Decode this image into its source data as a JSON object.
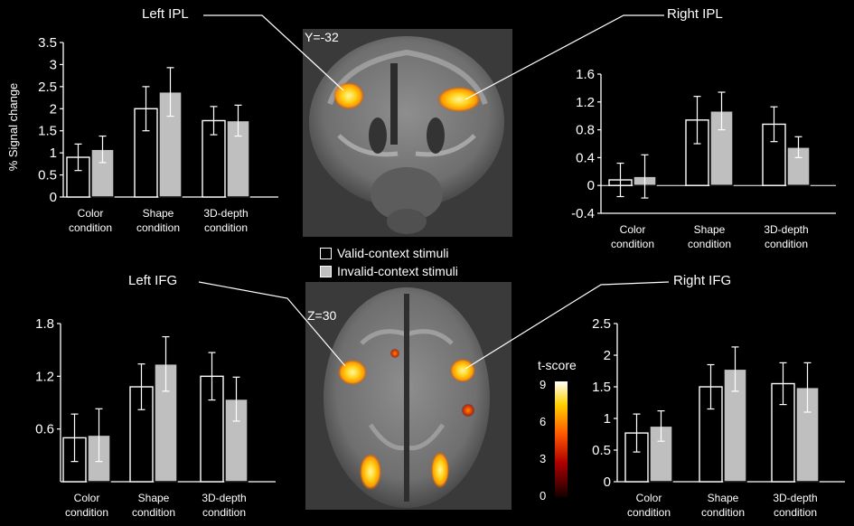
{
  "labels": {
    "left_ipl": "Left IPL",
    "right_ipl": "Right IPL",
    "left_ifg": "Left IFG",
    "right_ifg": "Right IFG",
    "coronal_coord": "Y=-32",
    "axial_coord": "Z=30",
    "tscore_title": "t-score"
  },
  "legend": {
    "valid": "Valid-context stimuli",
    "invalid": "Invalid-context stimuli",
    "valid_color": "#ffffff",
    "invalid_color": "#bfbfbf"
  },
  "tscore_scale": {
    "ticks": [
      "0",
      "3",
      "6",
      "9"
    ]
  },
  "colors": {
    "background": "#000000",
    "axis": "#ffffff",
    "valid_fill": "#ffffff",
    "invalid_fill": "#bfbfbf",
    "bar_stroke": "#000000"
  },
  "chart_data": [
    {
      "id": "left-ipl",
      "type": "bar",
      "ylabel": "% Signal change",
      "ylim": [
        0,
        3.5
      ],
      "yticks": [
        "0",
        "0.5",
        "1",
        "1.5",
        "2",
        "2.5",
        "3",
        "3.5"
      ],
      "categories": [
        [
          "Color",
          "condition"
        ],
        [
          "Shape",
          "condition"
        ],
        [
          "3D-depth",
          "condition"
        ]
      ],
      "series": [
        {
          "name": "Valid-context stimuli",
          "values": [
            0.9,
            2.0,
            1.73
          ],
          "errors": [
            0.3,
            0.5,
            0.32
          ]
        },
        {
          "name": "Invalid-context stimuli",
          "values": [
            1.08,
            2.38,
            1.73
          ],
          "errors": [
            0.3,
            0.55,
            0.35
          ]
        }
      ]
    },
    {
      "id": "right-ipl",
      "type": "bar",
      "ylabel": "",
      "ylim": [
        -0.4,
        1.6
      ],
      "yticks": [
        "-0.4",
        "0",
        "0.4",
        "0.8",
        "1.2",
        "1.6"
      ],
      "categories": [
        [
          "Color",
          "condition"
        ],
        [
          "Shape",
          "condition"
        ],
        [
          "3D-depth",
          "condition"
        ]
      ],
      "series": [
        {
          "name": "Valid-context stimuli",
          "values": [
            0.08,
            0.94,
            0.88
          ],
          "errors": [
            0.24,
            0.34,
            0.25
          ]
        },
        {
          "name": "Invalid-context stimuli",
          "values": [
            0.13,
            1.07,
            0.55
          ],
          "errors": [
            0.31,
            0.27,
            0.15
          ]
        }
      ]
    },
    {
      "id": "left-ifg",
      "type": "bar",
      "ylabel": "",
      "ylim": [
        0,
        1.8
      ],
      "yticks": [
        "0.6",
        "1.2",
        "1.8"
      ],
      "categories": [
        [
          "Color",
          "condition"
        ],
        [
          "Shape",
          "condition"
        ],
        [
          "3D-depth",
          "condition"
        ]
      ],
      "series": [
        {
          "name": "Valid-context stimuli",
          "values": [
            0.5,
            1.08,
            1.2
          ],
          "errors": [
            0.27,
            0.26,
            0.27
          ]
        },
        {
          "name": "Invalid-context stimuli",
          "values": [
            0.53,
            1.34,
            0.94
          ],
          "errors": [
            0.3,
            0.31,
            0.25
          ]
        }
      ]
    },
    {
      "id": "right-ifg",
      "type": "bar",
      "ylabel": "",
      "ylim": [
        0,
        2.5
      ],
      "yticks": [
        "0",
        "0.5",
        "1",
        "1.5",
        "2",
        "2.5"
      ],
      "categories": [
        [
          "Color",
          "condition"
        ],
        [
          "Shape",
          "condition"
        ],
        [
          "3D-depth",
          "condition"
        ]
      ],
      "series": [
        {
          "name": "Valid-context stimuli",
          "values": [
            0.77,
            1.5,
            1.55
          ],
          "errors": [
            0.3,
            0.35,
            0.33
          ]
        },
        {
          "name": "Invalid-context stimuli",
          "values": [
            0.88,
            1.78,
            1.49
          ],
          "errors": [
            0.24,
            0.35,
            0.39
          ]
        }
      ]
    }
  ]
}
